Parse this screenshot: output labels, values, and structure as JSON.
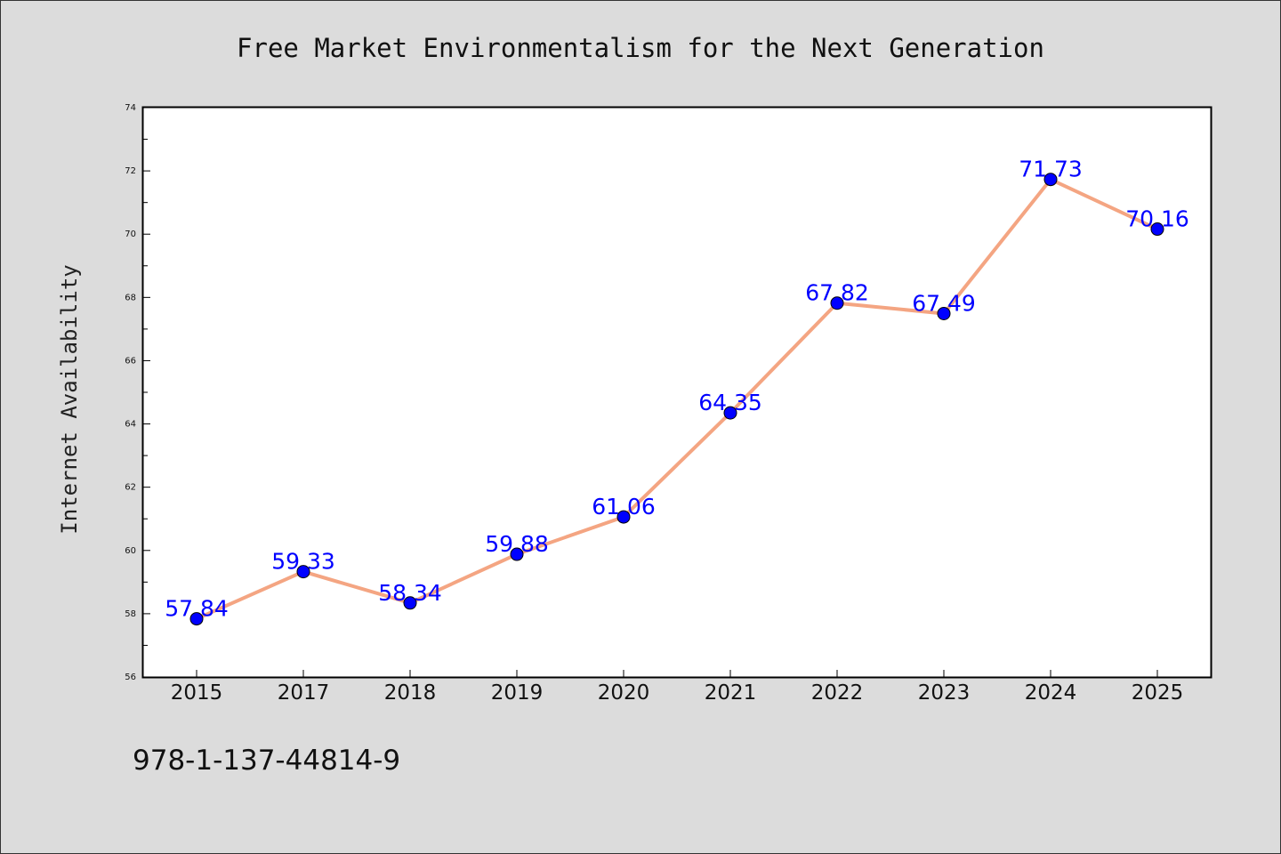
{
  "chart_data": {
    "type": "line",
    "title": "Free Market Environmentalism for the Next Generation",
    "xlabel": "",
    "ylabel": "Internet Availability",
    "categories": [
      "2015",
      "2017",
      "2018",
      "2019",
      "2020",
      "2021",
      "2022",
      "2023",
      "2024",
      "2025"
    ],
    "series": [
      {
        "values": [
          57.84,
          59.33,
          58.34,
          59.88,
          61.06,
          64.35,
          67.82,
          67.49,
          71.73,
          70.16
        ],
        "labels": [
          "57.84",
          "59.33",
          "58.34",
          "59.88",
          "61.06",
          "64.35",
          "67.82",
          "67.49",
          "71.73",
          "70.16"
        ]
      }
    ],
    "ylim": [
      56,
      74
    ],
    "yticks": [
      "56",
      "58",
      "60",
      "62",
      "64",
      "66",
      "68",
      "70",
      "72",
      "74"
    ],
    "grid": false,
    "line_color": "#f4a582",
    "marker_color": "#0000ff",
    "label_color": "#0000ff",
    "background_color": "#dcdcdc",
    "plot_background_color": "#ffffff"
  },
  "footer": {
    "isbn": "978-1-137-44814-9"
  }
}
